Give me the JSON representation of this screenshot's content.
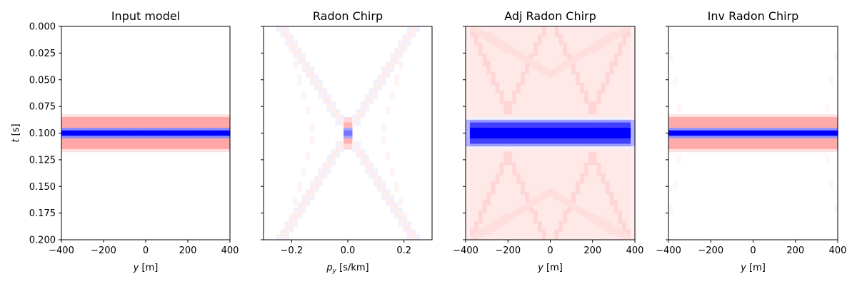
{
  "chart_data": [
    {
      "type": "heatmap",
      "title": "Input model",
      "xlabel_var": "y",
      "xlabel_unit": "[m]",
      "ylabel_var": "t",
      "ylabel_unit": "[s]",
      "xlim": [
        -400,
        400
      ],
      "ylim": [
        0.2,
        0.0
      ],
      "xticks": [
        -400,
        -200,
        0,
        200,
        400
      ],
      "xtick_labels": [
        "−400",
        "−200",
        "0",
        "200",
        "400"
      ],
      "yticks": [
        0.0,
        0.025,
        0.05,
        0.075,
        0.1,
        0.125,
        0.15,
        0.175,
        0.2
      ],
      "ytick_labels": [
        "0.000",
        "0.025",
        "0.050",
        "0.075",
        "0.100",
        "0.125",
        "0.150",
        "0.175",
        "0.200"
      ],
      "show_ytick_labels": true,
      "colormap": "seismic_r",
      "field": "flat_event",
      "event_time": 0.1
    },
    {
      "type": "heatmap",
      "title": "Radon Chirp",
      "xlabel_var": "p",
      "xlabel_sub": "y",
      "xlabel_unit": "[s/km]",
      "xlim": [
        -0.3,
        0.3
      ],
      "ylim": [
        0.2,
        0.0
      ],
      "xticks": [
        -0.2,
        0.0,
        0.2
      ],
      "xtick_labels": [
        "−0.2",
        "0.0",
        "0.2"
      ],
      "yticks": [
        0.0,
        0.025,
        0.05,
        0.075,
        0.1,
        0.125,
        0.15,
        0.175,
        0.2
      ],
      "show_ytick_labels": false,
      "colormap": "seismic_r",
      "field": "radon_focus",
      "event_time": 0.1,
      "focus_p": 0.0
    },
    {
      "type": "heatmap",
      "title": "Adj Radon Chirp",
      "xlabel_var": "y",
      "xlabel_unit": "[m]",
      "xlim": [
        -400,
        400
      ],
      "ylim": [
        0.2,
        0.0
      ],
      "xticks": [
        -400,
        -200,
        0,
        200,
        400
      ],
      "xtick_labels": [
        "−400",
        "−200",
        "0",
        "200",
        "400"
      ],
      "yticks": [
        0.0,
        0.025,
        0.05,
        0.075,
        0.1,
        0.125,
        0.15,
        0.175,
        0.2
      ],
      "show_ytick_labels": false,
      "colormap": "seismic_r",
      "field": "adjoint_smeared",
      "event_time": 0.1
    },
    {
      "type": "heatmap",
      "title": "Inv Radon Chirp",
      "xlabel_var": "y",
      "xlabel_unit": "[m]",
      "xlim": [
        -400,
        400
      ],
      "ylim": [
        0.2,
        0.0
      ],
      "xticks": [
        -400,
        -200,
        0,
        200,
        400
      ],
      "xtick_labels": [
        "−400",
        "−200",
        "0",
        "200",
        "400"
      ],
      "yticks": [
        0.0,
        0.025,
        0.05,
        0.075,
        0.1,
        0.125,
        0.15,
        0.175,
        0.2
      ],
      "show_ytick_labels": false,
      "colormap": "seismic_r",
      "field": "inverse_recovered",
      "event_time": 0.1
    }
  ]
}
